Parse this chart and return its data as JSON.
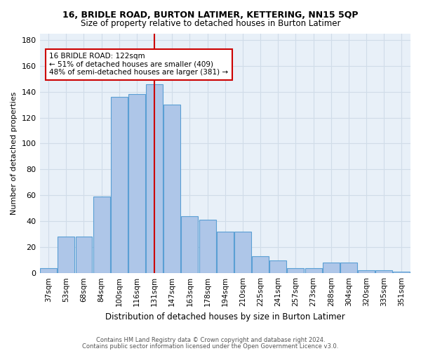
{
  "title": "16, BRIDLE ROAD, BURTON LATIMER, KETTERING, NN15 5QP",
  "subtitle": "Size of property relative to detached houses in Burton Latimer",
  "xlabel": "Distribution of detached houses by size in Burton Latimer",
  "ylabel": "Number of detached properties",
  "categories": [
    "37sqm",
    "53sqm",
    "68sqm",
    "84sqm",
    "100sqm",
    "116sqm",
    "131sqm",
    "147sqm",
    "163sqm",
    "178sqm",
    "194sqm",
    "210sqm",
    "225sqm",
    "241sqm",
    "257sqm",
    "273sqm",
    "288sqm",
    "304sqm",
    "320sqm",
    "335sqm",
    "351sqm"
  ],
  "values": [
    4,
    28,
    28,
    59,
    136,
    138,
    146,
    130,
    44,
    41,
    32,
    32,
    13,
    10,
    4,
    4,
    8,
    8,
    2,
    2,
    1
  ],
  "bar_color": "#aec6e8",
  "bar_edgecolor": "#5a9fd4",
  "bar_linewidth": 0.8,
  "grid_color": "#d0dce8",
  "bg_color": "#e8f0f8",
  "red_line_x": 6.0,
  "red_line_color": "#cc0000",
  "annotation_text": "16 BRIDLE ROAD: 122sqm\n← 51% of detached houses are smaller (409)\n48% of semi-detached houses are larger (381) →",
  "annotation_box_color": "#ffffff",
  "annotation_box_edgecolor": "#cc0000",
  "ylim": [
    0,
    185
  ],
  "yticks": [
    0,
    20,
    40,
    60,
    80,
    100,
    120,
    140,
    160,
    180
  ],
  "footer_line1": "Contains HM Land Registry data © Crown copyright and database right 2024.",
  "footer_line2": "Contains public sector information licensed under the Open Government Licence v3.0."
}
